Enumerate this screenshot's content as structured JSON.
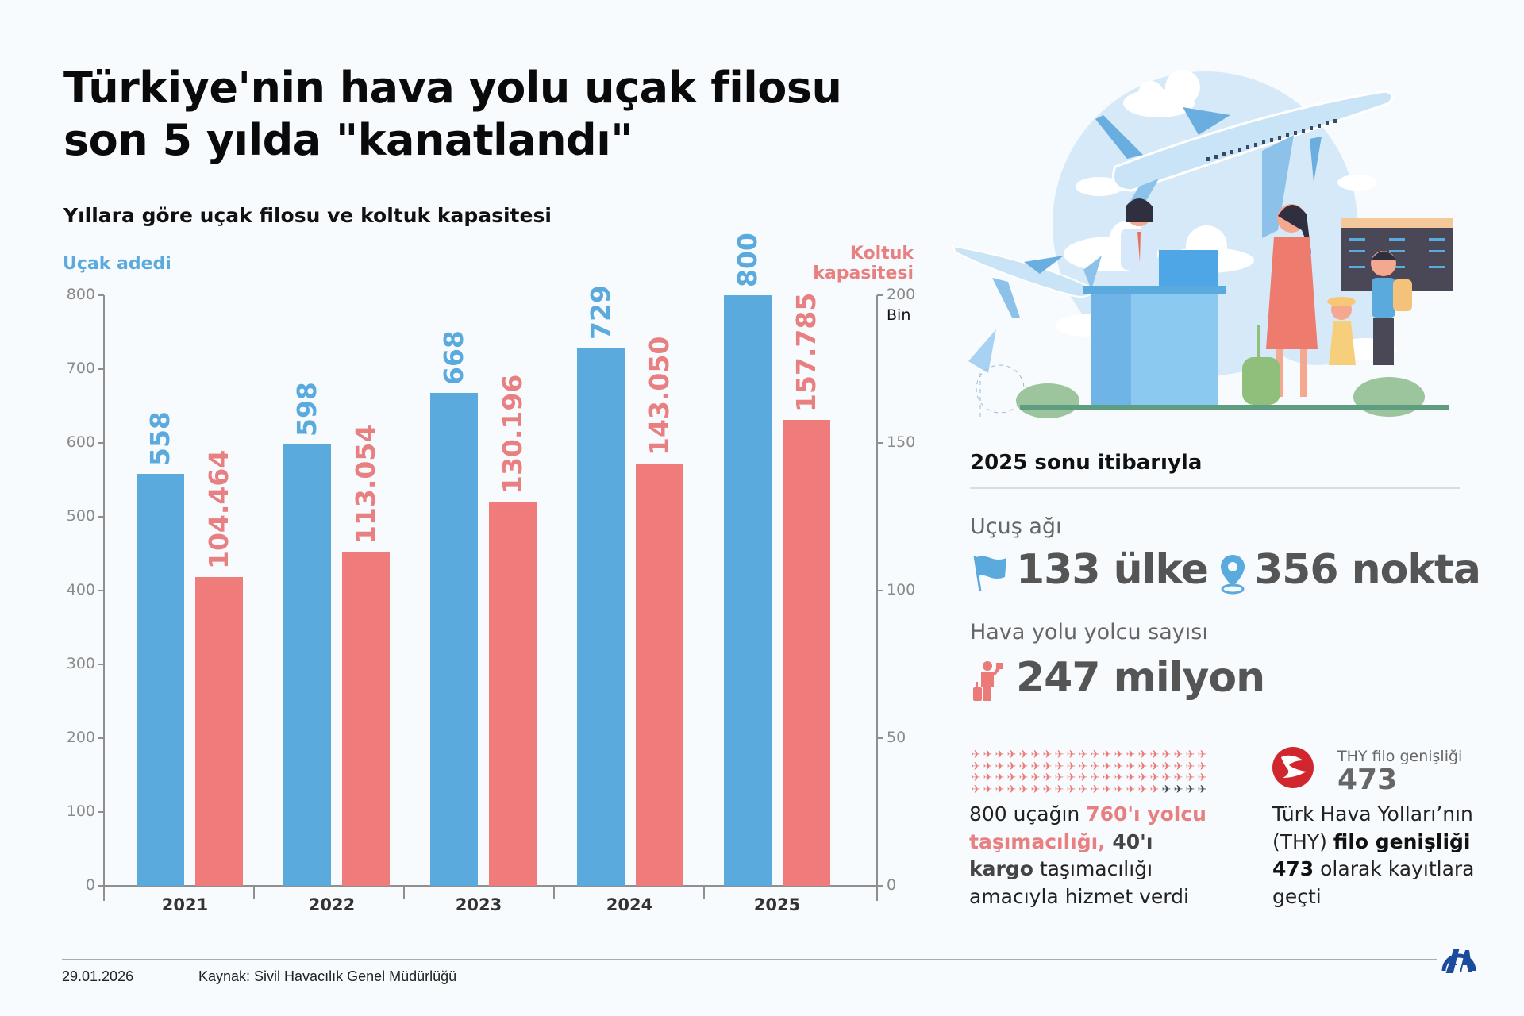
{
  "header": {
    "title_line1": "Türkiye'nin hava yolu uçak filosu",
    "title_line2": "son 5 yılda \"kanatlandı\"",
    "subtitle": "Yıllara göre uçak filosu ve koltuk kapasitesi"
  },
  "colors": {
    "aircraft_bar": "#5aaade",
    "seat_bar": "#f07b7b",
    "seat_label": "#e87f80",
    "big_stat": "#555555",
    "background": "#f7fbfe"
  },
  "chart_data": {
    "type": "bar",
    "title": "Yıllara göre uçak filosu ve koltuk kapasitesi",
    "categories": [
      "2021",
      "2022",
      "2023",
      "2024",
      "2025"
    ],
    "series": [
      {
        "name": "Uçak adedi",
        "axis": "left",
        "values": [
          558,
          598,
          668,
          729,
          800
        ],
        "labels": [
          "558",
          "598",
          "668",
          "729",
          "800"
        ]
      },
      {
        "name": "Koltuk kapasitesi",
        "axis": "right",
        "unit": "Bin",
        "values": [
          104.464,
          113.054,
          130.196,
          143.05,
          157.785
        ],
        "labels": [
          "104.464",
          "113.054",
          "130.196",
          "143.050",
          "157.785"
        ]
      }
    ],
    "left_axis": {
      "label": "Uçak adedi",
      "ylim": [
        0,
        800
      ],
      "ticks": [
        "0",
        "100",
        "200",
        "300",
        "400",
        "500",
        "600",
        "700",
        "800"
      ]
    },
    "right_axis": {
      "label_line1": "Koltuk",
      "label_line2": "kapasitesi",
      "unit": "Bin",
      "ylim": [
        0,
        200
      ],
      "ticks": [
        "0",
        "50",
        "100",
        "150",
        "200"
      ]
    },
    "grid": false,
    "legend": "axis titles"
  },
  "stats": {
    "heading": "2025 sonu itibarıyla",
    "network_label": "Uçuş ağı",
    "countries": "133 ülke",
    "destinations": "356 nokta",
    "passengers_label": "Hava yolu yolcu sayısı",
    "passengers": "247 milyon",
    "fleet_split": {
      "total_icons": 80,
      "passenger_icons": 76,
      "cargo_icons": 4,
      "text_part1": "800 uçağın ",
      "text_hl": "760'ı yolcu taşımacılığı,",
      "text_dark": " 40'ı kargo",
      "text_part2": " taşımacılığı amacıyla hizmet verdi"
    },
    "thy": {
      "caption": "THY filo genişliği",
      "number": "473",
      "text_part1": "Türk Hava Yolları’nın (THY) ",
      "text_bold1": "filo genişliği",
      "text_bold2": "473",
      "text_part2": " olarak kayıtlara geçti"
    }
  },
  "footer": {
    "date": "29.01.2026",
    "source": "Kaynak: Sivil Havacılık Genel Müdürlüğü",
    "logo": "AA"
  },
  "icons": {
    "flag": "flag-icon",
    "pin": "location-pin-icon",
    "traveler": "traveler-icon",
    "plane": "✈",
    "thy_logo": "thy-logo-icon",
    "aa_logo": "aa-logo-icon"
  }
}
